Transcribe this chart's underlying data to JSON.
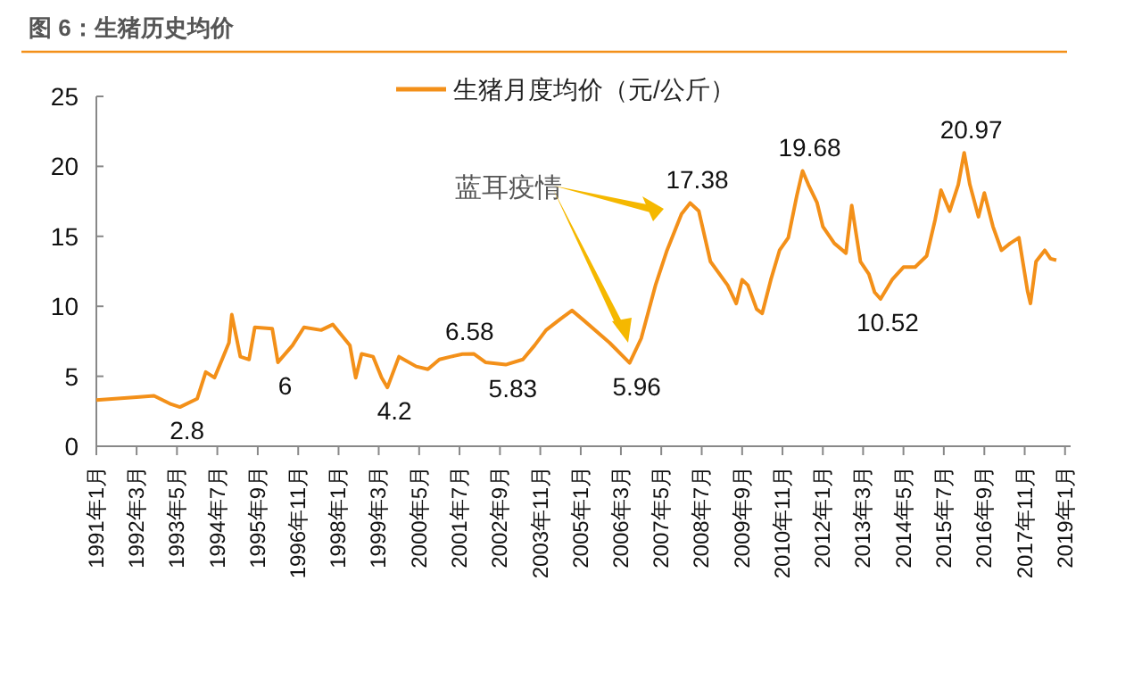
{
  "chart_data": {
    "type": "line",
    "title": "图 6：生猪历史均价",
    "ylim": [
      0,
      25
    ],
    "yticks": [
      0,
      5,
      10,
      15,
      20,
      25
    ],
    "xlim": [
      "1991-01",
      "2019-03"
    ],
    "xticks": [
      {
        "value": "1991-01",
        "label": "1991年1月"
      },
      {
        "value": "1992-03",
        "label": "1992年3月"
      },
      {
        "value": "1993-05",
        "label": "1993年5月"
      },
      {
        "value": "1994-07",
        "label": "1994年7月"
      },
      {
        "value": "1995-09",
        "label": "1995年9月"
      },
      {
        "value": "1996-11",
        "label": "1996年11月"
      },
      {
        "value": "1998-01",
        "label": "1998年1月"
      },
      {
        "value": "1999-03",
        "label": "1999年3月"
      },
      {
        "value": "2000-05",
        "label": "2000年5月"
      },
      {
        "value": "2001-07",
        "label": "2001年7月"
      },
      {
        "value": "2002-09",
        "label": "2002年9月"
      },
      {
        "value": "2003-11",
        "label": "2003年11月"
      },
      {
        "value": "2005-01",
        "label": "2005年1月"
      },
      {
        "value": "2006-03",
        "label": "2006年3月"
      },
      {
        "value": "2007-05",
        "label": "2007年5月"
      },
      {
        "value": "2008-07",
        "label": "2008年7月"
      },
      {
        "value": "2009-09",
        "label": "2009年9月"
      },
      {
        "value": "2010-11",
        "label": "2010年11月"
      },
      {
        "value": "2012-01",
        "label": "2012年1月"
      },
      {
        "value": "2013-03",
        "label": "2013年3月"
      },
      {
        "value": "2014-05",
        "label": "2014年5月"
      },
      {
        "value": "2015-07",
        "label": "2015年7月"
      },
      {
        "value": "2016-09",
        "label": "2016年9月"
      },
      {
        "value": "2017-11",
        "label": "2017年11月"
      },
      {
        "value": "2019-01",
        "label": "2019年1月"
      }
    ],
    "legend": "top",
    "grid": false,
    "marker": "none",
    "line_style": "solid",
    "series": [
      {
        "name": "生猪月度均价（元/公斤）",
        "color": "#f39019",
        "x": [
          "1991-01",
          "1992-03",
          "1992-09",
          "1993-03",
          "1993-06",
          "1993-12",
          "1994-03",
          "1994-06",
          "1994-09",
          "1994-11",
          "1994-12",
          "1995-03",
          "1995-06",
          "1995-08",
          "1996-02",
          "1996-04",
          "1996-09",
          "1997-01",
          "1997-07",
          "1997-11",
          "1998-05",
          "1998-07",
          "1998-09",
          "1999-01",
          "1999-04",
          "1999-06",
          "1999-10",
          "2000-04",
          "2000-08",
          "2000-12",
          "2001-04",
          "2001-08",
          "2001-12",
          "2002-04",
          "2002-11",
          "2003-05",
          "2003-09",
          "2004-01",
          "2004-06",
          "2004-10",
          "2005-02",
          "2005-11",
          "2006-06",
          "2006-10",
          "2007-03",
          "2007-07",
          "2007-12",
          "2008-03",
          "2008-06",
          "2008-10",
          "2009-04",
          "2009-07",
          "2009-09",
          "2009-11",
          "2010-02",
          "2010-04",
          "2010-07",
          "2010-10",
          "2011-01",
          "2011-04",
          "2011-06",
          "2011-08",
          "2011-11",
          "2012-01",
          "2012-05",
          "2012-09",
          "2012-11",
          "2013-02",
          "2013-05",
          "2013-07",
          "2013-09",
          "2014-01",
          "2014-05",
          "2014-09",
          "2015-01",
          "2015-04",
          "2015-06",
          "2015-09",
          "2015-12",
          "2016-02",
          "2016-04",
          "2016-07",
          "2016-09",
          "2016-12",
          "2017-03",
          "2017-06",
          "2017-09",
          "2017-12",
          "2018-01",
          "2018-03",
          "2018-06",
          "2018-08",
          "2018-10"
        ],
        "values": [
          3.3,
          3.5,
          3.6,
          3.0,
          2.8,
          3.4,
          5.3,
          4.9,
          6.4,
          7.4,
          9.4,
          6.4,
          6.2,
          8.5,
          8.4,
          6,
          7.2,
          8.5,
          8.3,
          8.7,
          7.2,
          4.9,
          6.6,
          6.4,
          4.9,
          4.2,
          6.4,
          5.7,
          5.5,
          6.2,
          6.4,
          6.58,
          6.6,
          6.0,
          5.83,
          6.2,
          7.2,
          8.3,
          9.1,
          9.7,
          9.0,
          7.4,
          5.96,
          7.7,
          11.5,
          14.0,
          16.6,
          17.38,
          16.8,
          13.2,
          11.5,
          10.2,
          11.9,
          11.5,
          9.8,
          9.5,
          11.9,
          14.0,
          14.9,
          17.9,
          19.68,
          18.7,
          17.4,
          15.7,
          14.5,
          13.8,
          17.2,
          13.2,
          12.3,
          11.0,
          10.52,
          11.9,
          12.8,
          12.8,
          13.6,
          16.2,
          18.3,
          16.8,
          18.7,
          20.97,
          18.7,
          16.4,
          18.1,
          15.7,
          14.0,
          14.5,
          14.9,
          11.1,
          10.2,
          13.2,
          14.0,
          13.4,
          13.3
        ]
      }
    ],
    "annotations": [
      "蓝耳疫情",
      {
        "text": "2.8",
        "x": "1993-06",
        "y": 2.8
      },
      {
        "text": "6",
        "x": "1996-04",
        "y": 6
      },
      {
        "text": "4.2",
        "x": "1999-06",
        "y": 4.2
      },
      {
        "text": "6.58",
        "x": "2001-08",
        "y": 6.58
      },
      {
        "text": "5.83",
        "x": "2002-11",
        "y": 5.83
      },
      {
        "text": "5.96",
        "x": "2006-06",
        "y": 5.96
      },
      {
        "text": "17.38",
        "x": "2008-03",
        "y": 17.38
      },
      {
        "text": "19.68",
        "x": "2011-06",
        "y": 19.68
      },
      {
        "text": "10.52",
        "x": "2013-09",
        "y": 10.52
      },
      {
        "text": "20.97",
        "x": "2016-02",
        "y": 20.97
      }
    ]
  }
}
